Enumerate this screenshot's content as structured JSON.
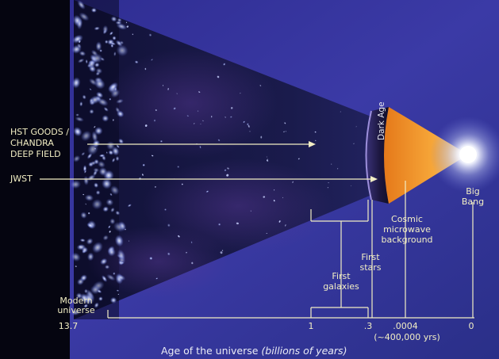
{
  "labels": {
    "hst": [
      "HST GOODS /",
      "CHANDRA",
      "DEEP FIELD"
    ],
    "jwst": "JWST",
    "dark_age": "Dark Age",
    "big_bang": [
      "Big",
      "Bang"
    ],
    "cmb": [
      "Cosmic",
      "microwave",
      "background"
    ],
    "first_stars": [
      "First",
      "stars"
    ],
    "first_galaxies": [
      "First",
      "galaxies"
    ],
    "modern_universe": [
      "Modern",
      "universe"
    ]
  },
  "axis": {
    "ticks": [
      "13.7",
      "1",
      ".3",
      ".0004",
      "0"
    ],
    "cmb_note": "(~400,000 yrs)",
    "title_main": "Age of the universe",
    "title_unit": "(billions of years)"
  },
  "colors": {
    "background_blue": "#3b3aa6",
    "cone_dark": "#0b0c2e",
    "annotation": "#f2eec4",
    "cmb_orange": "#f08a1c"
  }
}
